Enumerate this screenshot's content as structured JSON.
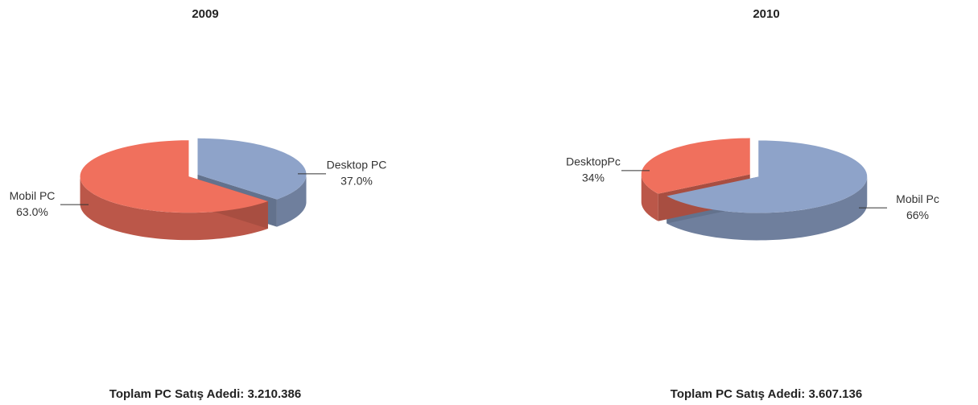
{
  "chart_data": [
    {
      "type": "pie3d",
      "title": "2009",
      "categories": [
        "Desktop PC",
        "Mobil PC"
      ],
      "values": [
        37.0,
        63.0
      ],
      "value_labels": [
        "37.0%",
        "63.0%"
      ],
      "colors": [
        "#8ea3c9",
        "#f0705d"
      ],
      "footer": "Toplam PC Satış Adedi: 3.210.386"
    },
    {
      "type": "pie3d",
      "title": "2010",
      "categories": [
        "Mobil Pc",
        "DesktopPc"
      ],
      "values": [
        66,
        34
      ],
      "value_labels": [
        "66%",
        "34%"
      ],
      "colors": [
        "#8ea3c9",
        "#f0705d"
      ],
      "footer": "Toplam PC Satış Adedi: 3.607.136"
    }
  ]
}
